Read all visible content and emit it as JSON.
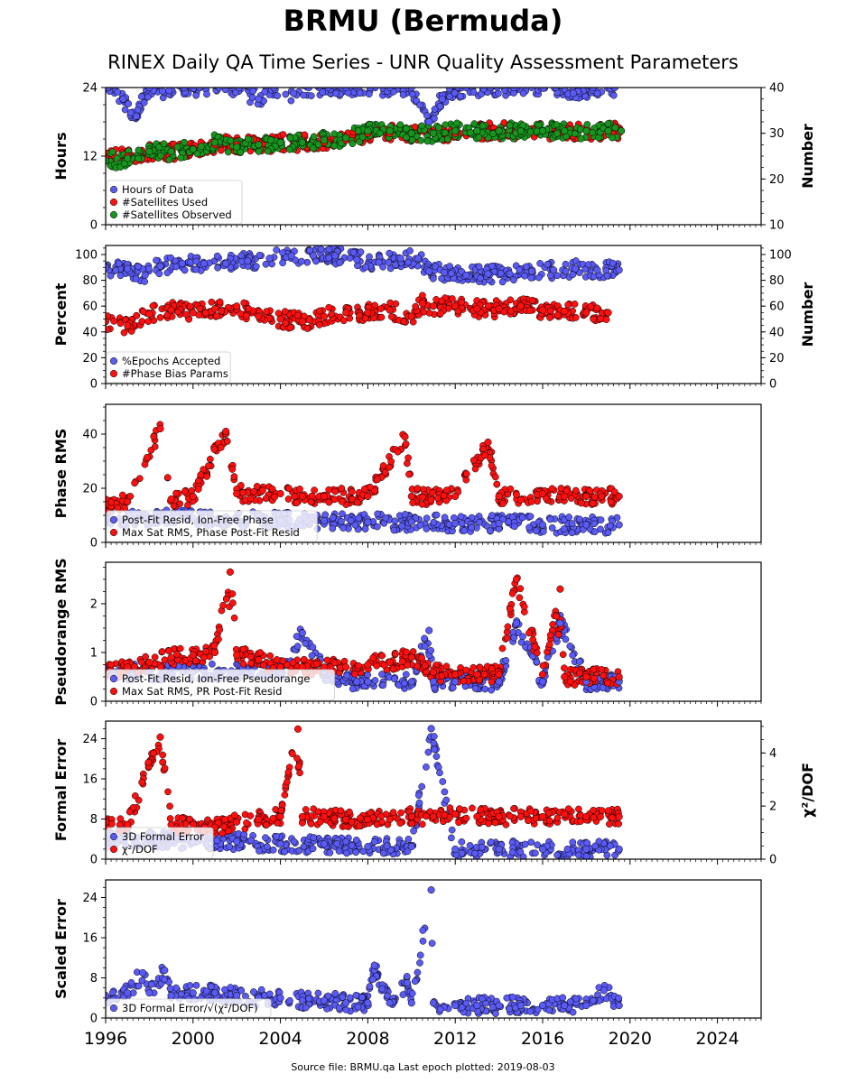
{
  "title": "BRMU (Bermuda)",
  "subtitle": "RINEX Daily QA Time Series - UNR Quality Assessment Parameters",
  "source_note": "Source file: BRMU.qa Last epoch plotted: 2019-08-03",
  "colors": {
    "blue": "#5a5af5",
    "red": "#ff1010",
    "green": "#18951e"
  },
  "chart_data": [
    {
      "type": "scatter",
      "ylabel": "Hours",
      "ylim": [
        0,
        24
      ],
      "yticks": [
        0,
        12,
        24
      ],
      "y2label": "Number",
      "y2lim": [
        10,
        40
      ],
      "y2ticks": [
        10,
        20,
        30,
        40
      ],
      "xlim": [
        1996,
        2026
      ],
      "legend_placement": "lower-left",
      "series": [
        {
          "name": "Hours of Data",
          "color": "blue",
          "axis": "left",
          "x": [
            1996.1,
            1996.8,
            1997.4,
            1998.0,
            1998.9,
            1999.6,
            2000.3,
            2001.2,
            2002.1,
            2003.0,
            2003.7,
            2004.6,
            2005.3,
            2006.2,
            2007.0,
            2008.1,
            2009.0,
            2010.0,
            2010.8,
            2011.4,
            2012.5,
            2013.6,
            2014.7,
            2015.5,
            2016.6,
            2017.4,
            2018.3,
            2019.3
          ],
          "y": [
            24,
            22,
            19,
            24,
            23.5,
            24,
            24,
            24,
            24,
            22,
            24,
            23,
            24,
            24,
            24,
            24,
            24,
            24,
            18,
            22,
            24,
            24,
            24,
            24,
            24,
            23,
            24,
            24
          ]
        },
        {
          "name": "#Satellites Used",
          "color": "red",
          "axis": "right",
          "x": [
            1996.0,
            1997.0,
            1998.0,
            1999.0,
            2000.0,
            2001.0,
            2002.0,
            2003.0,
            2004.0,
            2005.0,
            2006.0,
            2007.0,
            2008.0,
            2009.0,
            2010.0,
            2011.0,
            2012.0,
            2013.0,
            2014.0,
            2015.0,
            2016.0,
            2017.0,
            2018.0,
            2019.0,
            2019.6
          ],
          "y": [
            24.5,
            25,
            26,
            26,
            26.5,
            27.5,
            27.5,
            27.5,
            28,
            28,
            28,
            28.5,
            30,
            30,
            30,
            30,
            30,
            30.5,
            30.5,
            30.5,
            30.5,
            30.5,
            30.5,
            30.5,
            30.5
          ]
        },
        {
          "name": "#Satellites Observed",
          "color": "green",
          "axis": "right",
          "x": [
            1996.0,
            1997.0,
            1998.0,
            1999.0,
            2000.0,
            2001.0,
            2002.0,
            2003.0,
            2004.0,
            2005.0,
            2006.0,
            2007.0,
            2008.0,
            2009.0,
            2010.0,
            2011.0,
            2012.0,
            2013.0,
            2014.0,
            2015.0,
            2016.0,
            2017.0,
            2018.0,
            2019.0,
            2019.6
          ],
          "y": [
            24,
            24.5,
            26,
            26,
            26.5,
            28,
            27,
            27.5,
            28,
            28,
            28.5,
            29,
            30.5,
            30.5,
            30,
            30,
            30.5,
            30.5,
            30.5,
            30.5,
            30.5,
            30.5,
            30.5,
            30.5,
            30.5
          ]
        }
      ]
    },
    {
      "type": "scatter",
      "ylabel": "Percent",
      "ylim": [
        0,
        107
      ],
      "yticks": [
        0,
        20,
        40,
        60,
        80,
        100
      ],
      "y2label": "Number",
      "y2lim": [
        0,
        107
      ],
      "y2ticks": [
        0,
        20,
        40,
        60,
        80,
        100
      ],
      "xlim": [
        1996,
        2026
      ],
      "legend_placement": "lower-left",
      "series": [
        {
          "name": "%Epochs Accepted",
          "color": "blue",
          "axis": "left",
          "x": [
            1996.0,
            1997.0,
            1997.8,
            1998.5,
            1999.5,
            2000.5,
            2001.5,
            2002.5,
            2003.5,
            2004.5,
            2005.5,
            2006.5,
            2007.5,
            2008.5,
            2009.5,
            2010.3,
            2010.8,
            2011.5,
            2012.5,
            2013.5,
            2014.5,
            2015.5,
            2016.5,
            2017.5,
            2018.5,
            2019.5
          ],
          "y": [
            90,
            89,
            84,
            91,
            93,
            93,
            93,
            95,
            97,
            99,
            99,
            99,
            96,
            94,
            97,
            97,
            87,
            86,
            84,
            85,
            85,
            87,
            88,
            89,
            88,
            88
          ]
        },
        {
          "name": "#Phase Bias Params",
          "color": "red",
          "axis": "right",
          "x": [
            1996.0,
            1997.0,
            1998.0,
            1999.0,
            2000.0,
            2001.0,
            2002.0,
            2003.0,
            2004.0,
            2005.0,
            2006.0,
            2007.0,
            2008.0,
            2009.0,
            2010.0,
            2010.5,
            2011.0,
            2012.0,
            2013.0,
            2014.0,
            2015.0,
            2016.0,
            2017.0,
            2018.0,
            2019.0
          ],
          "y": [
            48,
            45,
            54,
            57,
            55,
            58,
            60,
            52,
            50,
            48,
            52,
            55,
            55,
            57,
            52,
            62,
            60,
            60,
            58,
            58,
            60,
            57,
            56,
            55,
            55
          ]
        }
      ]
    },
    {
      "type": "scatter",
      "ylabel": "Phase RMS",
      "ylim": [
        0,
        51
      ],
      "yticks": [
        0,
        20,
        40
      ],
      "xlim": [
        1996,
        2026
      ],
      "legend_placement": "lower-left",
      "series": [
        {
          "name": "Post-Fit Resid, Ion-Free Phase",
          "color": "blue",
          "x": [
            1996.0,
            1998.0,
            2000.0,
            2002.0,
            2004.0,
            2006.0,
            2008.0,
            2010.0,
            2012.0,
            2014.0,
            2016.0,
            2018.0,
            2019.5
          ],
          "y": [
            9,
            9,
            9,
            8.5,
            8,
            8,
            7.5,
            7.5,
            7,
            7,
            6.5,
            6.5,
            6.5
          ]
        },
        {
          "name": "Max Sat RMS, Phase Post-Fit Resid",
          "color": "red",
          "x": [
            1996.0,
            1997.0,
            1998.5,
            1999.0,
            2000.0,
            2001.5,
            2002.0,
            2004.0,
            2005.0,
            2006.0,
            2008.0,
            2009.7,
            2010.0,
            2012.0,
            2013.5,
            2014.0,
            2016.0,
            2017.0,
            2018.0,
            2019.5
          ],
          "y": [
            14,
            15,
            42,
            16,
            17,
            41,
            18,
            18,
            17,
            17,
            17,
            39,
            17,
            17,
            37,
            17,
            18,
            17,
            17,
            17
          ]
        }
      ]
    },
    {
      "type": "scatter",
      "ylabel": "Pseudorange RMS",
      "ylim": [
        0,
        2.85
      ],
      "yticks": [
        0,
        1,
        2
      ],
      "xlim": [
        1996,
        2026
      ],
      "legend_placement": "lower-left",
      "series": [
        {
          "name": "Post-Fit Resid, Ion-Free Pseudorange",
          "color": "blue",
          "x": [
            1996.0,
            1998.0,
            2000.0,
            2002.0,
            2004.0,
            2005.0,
            2006.0,
            2007.5,
            2008.0,
            2010.0,
            2010.8,
            2011.0,
            2012.0,
            2014.0,
            2014.8,
            2016.0,
            2016.8,
            2018.0,
            2019.5
          ],
          "y": [
            0.6,
            0.6,
            0.6,
            0.6,
            0.6,
            1.4,
            0.6,
            0.4,
            0.4,
            0.4,
            1.45,
            0.4,
            0.4,
            0.4,
            1.6,
            0.4,
            1.6,
            0.4,
            0.4
          ]
        },
        {
          "name": "Max Sat RMS, PR Post-Fit Resid",
          "color": "red",
          "x": [
            1996.0,
            1997.0,
            1998.0,
            1999.0,
            2000.0,
            2001.0,
            2001.7,
            2002.0,
            2003.0,
            2004.0,
            2005.0,
            2006.0,
            2007.0,
            2008.0,
            2009.0,
            2010.0,
            2011.0,
            2012.0,
            2013.0,
            2014.0,
            2014.8,
            2016.0,
            2016.8,
            2017.0,
            2018.0,
            2019.5
          ],
          "y": [
            0.6,
            0.7,
            0.8,
            0.9,
            0.95,
            1.0,
            2.65,
            0.95,
            0.85,
            0.7,
            0.7,
            0.7,
            0.7,
            0.75,
            0.8,
            0.9,
            0.6,
            0.55,
            0.55,
            0.55,
            2.5,
            0.55,
            2.3,
            0.5,
            0.5,
            0.5
          ]
        }
      ]
    },
    {
      "type": "scatter",
      "ylabel": "Formal Error",
      "ylim": [
        0,
        27.5
      ],
      "yticks": [
        0,
        8,
        16,
        24
      ],
      "y2label": "χ²/DOF",
      "y2lim": [
        0,
        5.2
      ],
      "y2ticks": [
        0,
        2,
        4
      ],
      "xlim": [
        1996,
        2026
      ],
      "legend_placement": "lower-left",
      "series": [
        {
          "name": "3D Formal Error",
          "color": "blue",
          "axis": "left",
          "x": [
            1996.0,
            1998.0,
            2000.0,
            2002.0,
            2004.0,
            2006.0,
            2008.0,
            2010.0,
            2010.9,
            2012.0,
            2014.0,
            2016.0,
            2018.0,
            2019.5
          ],
          "y": [
            4,
            4,
            3.5,
            3.5,
            3,
            3,
            2.5,
            2.5,
            26,
            2,
            2,
            2,
            2,
            2
          ]
        },
        {
          "name": "$\\chi^2$/DOF",
          "color": "red",
          "axis": "right",
          "x": [
            1996.0,
            1997.0,
            1998.5,
            1999.0,
            2000.0,
            2001.0,
            2002.0,
            2003.0,
            2004.0,
            2004.8,
            2005.0,
            2006.0,
            2007.0,
            2008.0,
            2009.0,
            2010.0,
            2011.0,
            2012.0,
            2013.0,
            2014.0,
            2015.0,
            2016.0,
            2017.0,
            2018.0,
            2019.5
          ],
          "y": [
            1.4,
            1.3,
            4.6,
            1.3,
            1.3,
            1.2,
            1.4,
            1.5,
            1.6,
            4.9,
            1.6,
            1.6,
            1.5,
            1.5,
            1.5,
            1.6,
            1.6,
            1.7,
            1.6,
            1.6,
            1.6,
            1.6,
            1.7,
            1.6,
            1.6
          ]
        }
      ]
    },
    {
      "type": "scatter",
      "ylabel": "Scaled Error",
      "ylim": [
        0,
        27.5
      ],
      "yticks": [
        0,
        8,
        16,
        24
      ],
      "xlim": [
        1996,
        2026
      ],
      "xticks": [
        1996,
        2000,
        2004,
        2008,
        2012,
        2016,
        2020,
        2024
      ],
      "legend_placement": "lower-left",
      "series": [
        {
          "name": "3D Formal Error/$\\sqrt{\\chi^2/DOF}$",
          "color": "blue",
          "x": [
            1996.0,
            1997.0,
            1997.7,
            1998.0,
            1998.7,
            1999.0,
            2000.0,
            2001.0,
            2002.0,
            2003.0,
            2004.0,
            2005.0,
            2006.0,
            2007.0,
            2008.0,
            2008.3,
            2009.0,
            2009.8,
            2010.0,
            2010.9,
            2011.0,
            2012.0,
            2013.0,
            2014.0,
            2015.0,
            2016.0,
            2017.0,
            2018.0,
            2018.8,
            2019.5
          ],
          "y": [
            4.5,
            5,
            9,
            5,
            9.5,
            4.5,
            5,
            5,
            4.5,
            4,
            4,
            3.5,
            3.5,
            3,
            3,
            10.5,
            3,
            7,
            3,
            25.5,
            3,
            2.5,
            2.5,
            2.5,
            2.5,
            2.5,
            2.5,
            2.5,
            5.5,
            2.5
          ]
        }
      ]
    }
  ]
}
